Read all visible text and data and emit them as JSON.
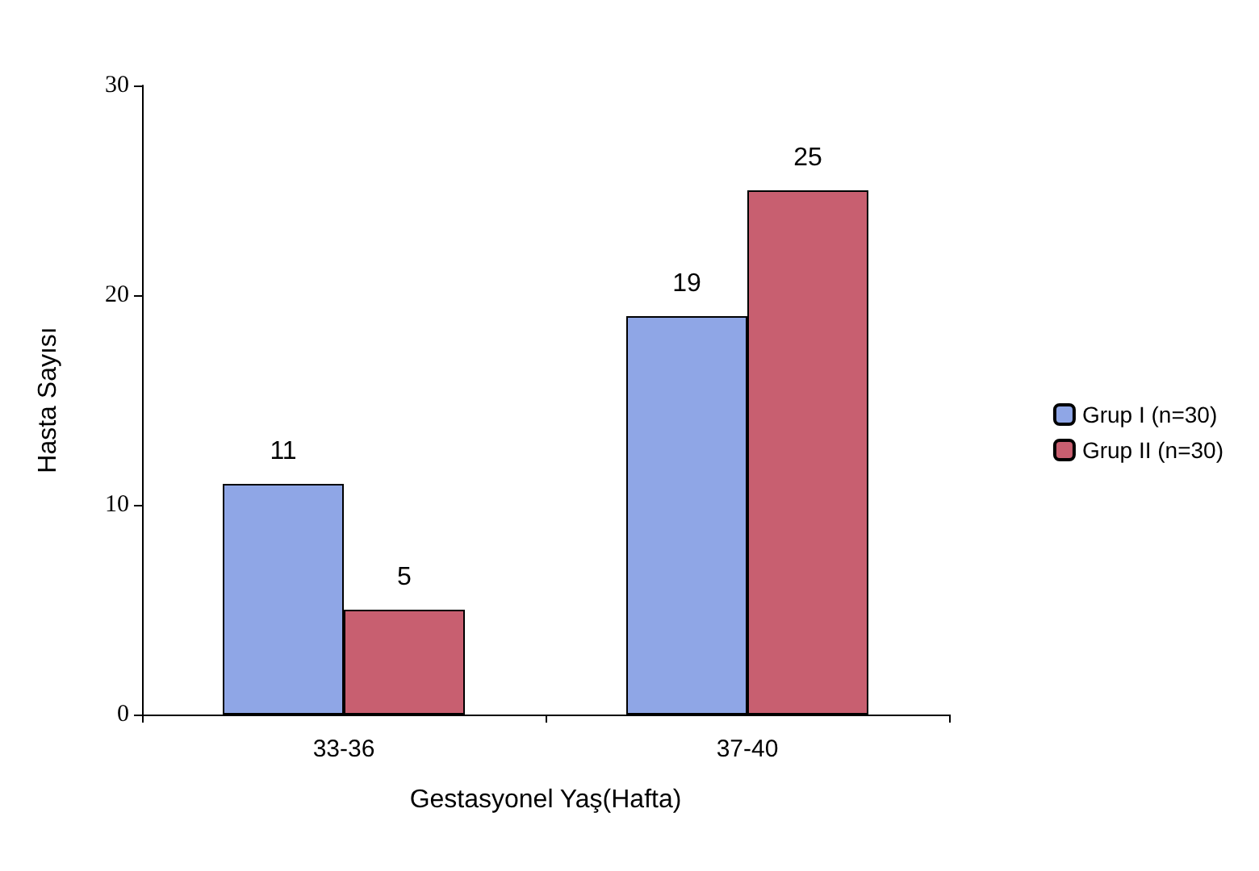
{
  "chart_data": {
    "type": "bar",
    "xlabel": "Gestasyonel Yaş(Hafta)",
    "ylabel": "Hasta Sayısı",
    "categories": [
      "33-36",
      "37-40"
    ],
    "series": [
      {
        "name": "Grup I (n=30)",
        "color": "#8fa6e6",
        "values": [
          11,
          19
        ]
      },
      {
        "name": "Grup II (n=30)",
        "color": "#c85f70",
        "values": [
          5,
          25
        ]
      }
    ],
    "ylim": [
      0,
      30
    ],
    "yticks": [
      0,
      10,
      20,
      30
    ],
    "grid": false,
    "legend": "right",
    "data_labels": true
  }
}
